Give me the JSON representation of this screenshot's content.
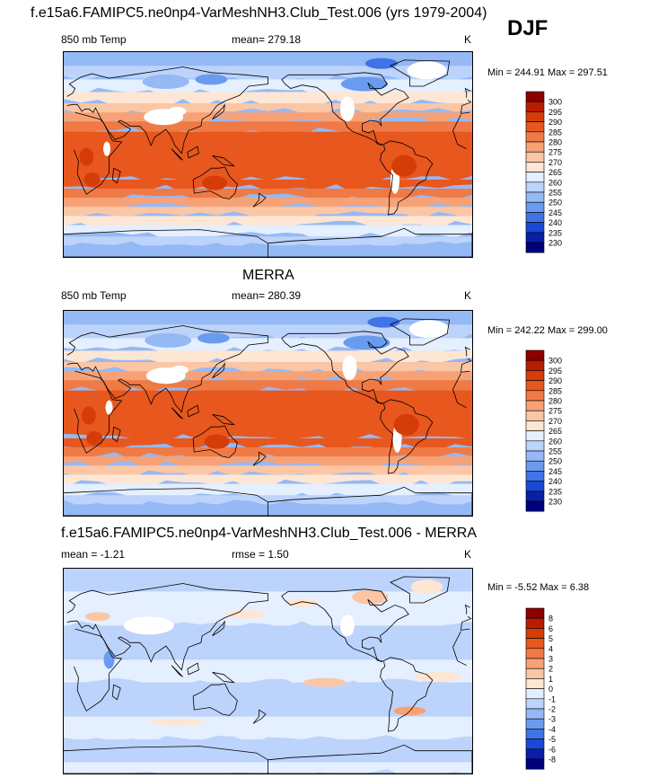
{
  "figure": {
    "title": "f.e15a6.FAMIPC5.ne0np4-VarMeshNH3.Club_Test.006 (yrs 1979-2004)",
    "season": "DJF"
  },
  "panels": [
    {
      "id": "model",
      "heading": "",
      "left_label": "850 mb Temp",
      "center_label": "mean= 279.18",
      "rmse_label": "",
      "units": "K",
      "minmax": "Min = 244.91 Max = 297.51",
      "colorbar": {
        "levels": [
          "300",
          "295",
          "290",
          "285",
          "280",
          "275",
          "270",
          "265",
          "260",
          "255",
          "250",
          "245",
          "240",
          "235",
          "230"
        ],
        "colors": [
          "#8c0000",
          "#b81d00",
          "#d63c08",
          "#e8571e",
          "#f07a45",
          "#f7a276",
          "#fbc6a6",
          "#fde6d4",
          "#e4efff",
          "#bcd3fb",
          "#95b9f5",
          "#6a9bef",
          "#3f73e6",
          "#1a48d6",
          "#0a1ea6",
          "#00007d"
        ]
      }
    },
    {
      "id": "obs",
      "heading": "MERRA",
      "left_label": "850 mb Temp",
      "center_label": "mean= 280.39",
      "rmse_label": "",
      "units": "K",
      "minmax": "Min = 242.22 Max = 299.00",
      "colorbar": {
        "levels": [
          "300",
          "295",
          "290",
          "285",
          "280",
          "275",
          "270",
          "265",
          "260",
          "255",
          "250",
          "245",
          "240",
          "235",
          "230"
        ],
        "colors": [
          "#8c0000",
          "#b81d00",
          "#d63c08",
          "#e8571e",
          "#f07a45",
          "#f7a276",
          "#fbc6a6",
          "#fde6d4",
          "#e4efff",
          "#bcd3fb",
          "#95b9f5",
          "#6a9bef",
          "#3f73e6",
          "#1a48d6",
          "#0a1ea6",
          "#00007d"
        ]
      }
    },
    {
      "id": "diff",
      "heading": "f.e15a6.FAMIPC5.ne0np4-VarMeshNH3.Club_Test.006 - MERRA",
      "left_label": "mean =  -1.21",
      "center_label": "rmse =   1.50",
      "rmse_label": "",
      "units": "K",
      "minmax": "Min =  -5.52 Max =   6.38",
      "colorbar": {
        "levels": [
          "8",
          "6",
          "5",
          "4",
          "3",
          "2",
          "1",
          "0",
          "-1",
          "-2",
          "-3",
          "-4",
          "-5",
          "-6",
          "-8"
        ],
        "colors": [
          "#8c0000",
          "#b81d00",
          "#d63c08",
          "#e8571e",
          "#f07a45",
          "#f7a276",
          "#fbc6a6",
          "#fde6d4",
          "#e4efff",
          "#bcd3fb",
          "#95b9f5",
          "#6a9bef",
          "#3f73e6",
          "#1a48d6",
          "#0a1ea6",
          "#00007d"
        ]
      }
    }
  ],
  "chart_data": [
    {
      "type": "heatmap",
      "title": "850 mb Temp",
      "subtitle": "mean= 279.18",
      "units": "K",
      "min": 244.91,
      "max": 297.51,
      "mean": 279.18,
      "colorbar_levels": [
        230,
        235,
        240,
        245,
        250,
        255,
        260,
        265,
        270,
        275,
        280,
        285,
        290,
        295,
        300
      ]
    },
    {
      "type": "heatmap",
      "title": "850 mb Temp",
      "subtitle": "mean= 280.39",
      "units": "K",
      "min": 242.22,
      "max": 299.0,
      "mean": 280.39,
      "colorbar_levels": [
        230,
        235,
        240,
        245,
        250,
        255,
        260,
        265,
        270,
        275,
        280,
        285,
        290,
        295,
        300
      ]
    },
    {
      "type": "heatmap",
      "title": "f.e15a6.FAMIPC5.ne0np4-VarMeshNH3.Club_Test.006 - MERRA",
      "units": "K",
      "min": -5.52,
      "max": 6.38,
      "mean": -1.21,
      "rmse": 1.5,
      "colorbar_levels": [
        -8,
        -6,
        -5,
        -4,
        -3,
        -2,
        -1,
        0,
        1,
        2,
        3,
        4,
        5,
        6,
        8
      ]
    }
  ]
}
